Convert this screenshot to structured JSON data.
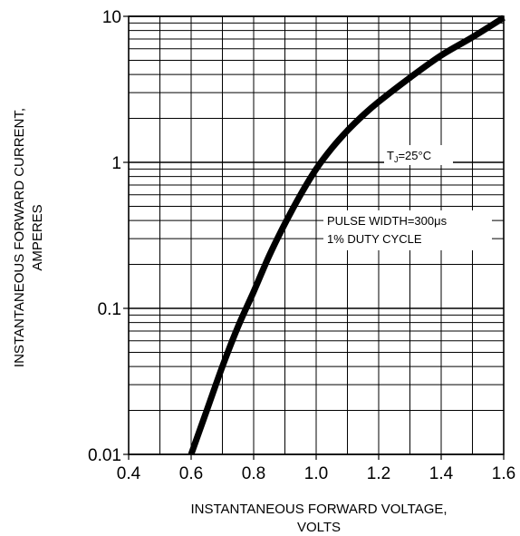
{
  "chart_data": {
    "type": "line",
    "xlabel_line1": "INSTANTANEOUS FORWARD VOLTAGE,",
    "xlabel_line2": "VOLTS",
    "ylabel_line1": "INSTANTANEOUS FORWARD CURRENT,",
    "ylabel_line2": "AMPERES",
    "x_scale": "linear",
    "y_scale": "log",
    "xlim": [
      0.4,
      1.6
    ],
    "ylim": [
      0.01,
      10
    ],
    "x_ticks": [
      "0.4",
      "0.6",
      "0.8",
      "1.0",
      "1.2",
      "1.4",
      "1.6"
    ],
    "y_ticks": [
      "0.01",
      "0.1",
      "1",
      "10"
    ],
    "grid": true,
    "series": [
      {
        "x": [
          0.6,
          0.65,
          0.7,
          0.75,
          0.8,
          0.85,
          0.9,
          0.95,
          1.0,
          1.05,
          1.1,
          1.15,
          1.2,
          1.3,
          1.4,
          1.5,
          1.6
        ],
        "y": [
          0.01,
          0.02,
          0.04,
          0.075,
          0.13,
          0.23,
          0.38,
          0.6,
          0.9,
          1.25,
          1.65,
          2.1,
          2.6,
          3.8,
          5.4,
          7.2,
          9.8
        ]
      }
    ],
    "annotations": {
      "tj_main": "T",
      "tj_sub": "J",
      "tj_rest": "=25°C",
      "pulse": "PULSE WIDTH=300μs",
      "duty": "1% DUTY CYCLE"
    },
    "colors": {
      "line": "#000000",
      "grid": "#000000",
      "background": "#ffffff"
    }
  }
}
